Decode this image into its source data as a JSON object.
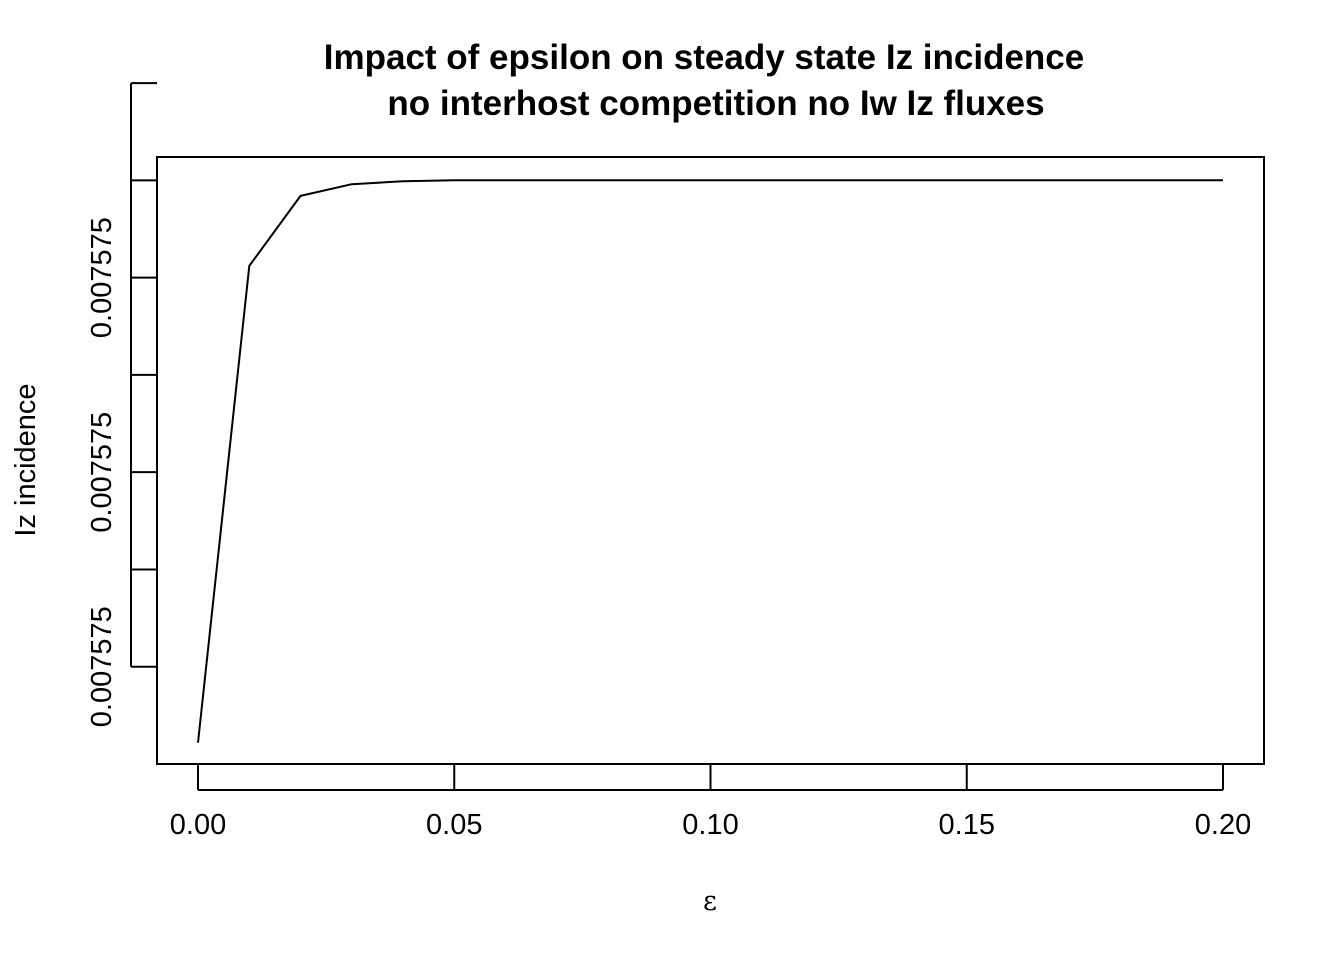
{
  "chart_data": {
    "type": "line",
    "title_lines": [
      "Impact of epsilon on steady state Iz incidence",
      "no interhost competition no Iw Iz fluxes"
    ],
    "xlabel": "ε",
    "ylabel": "Iz incidence",
    "x_ticks": [
      0.0,
      0.05,
      0.1,
      0.15,
      0.2
    ],
    "x_tick_labels": [
      "0.00",
      "0.05",
      "0.10",
      "0.15",
      "0.20"
    ],
    "xlim": [
      -0.008,
      0.208
    ],
    "y_tick_positions": [
      0.0,
      0.5,
      1.0,
      1.5,
      2.0,
      2.5,
      3.0
    ],
    "y_tick_labels": [
      "0.007575",
      "",
      "0.007575",
      "",
      "0.007575",
      "",
      ""
    ],
    "ylim": [
      -0.5,
      2.62
    ],
    "y_note": "relative offsets; all labeled ticks read 0.007575",
    "series": [
      {
        "name": "Iz incidence",
        "color": "#000000",
        "x": [
          0.0,
          0.01,
          0.02,
          0.03,
          0.04,
          0.05,
          0.06,
          0.07,
          0.08,
          0.09,
          0.1,
          0.11,
          0.12,
          0.13,
          0.14,
          0.15,
          0.16,
          0.17,
          0.18,
          0.19,
          0.2
        ],
        "y": [
          -0.39,
          2.06,
          2.42,
          2.48,
          2.495,
          2.5,
          2.5,
          2.5,
          2.5,
          2.5,
          2.5,
          2.5,
          2.5,
          2.5,
          2.5,
          2.5,
          2.5,
          2.5,
          2.5,
          2.5,
          2.5
        ]
      }
    ]
  }
}
